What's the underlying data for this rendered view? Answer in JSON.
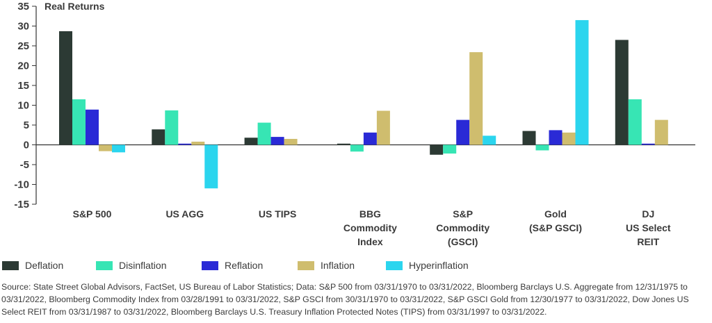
{
  "chart_data": {
    "type": "bar",
    "title": "",
    "ylabel": "Real Returns",
    "xlabel": "",
    "ylim": [
      -15,
      35
    ],
    "yticks": [
      "35",
      "30",
      "25",
      "20",
      "15",
      "10",
      "5",
      "0",
      "-5",
      "-10",
      "-15"
    ],
    "grid": false,
    "legend_position": "bottom",
    "categories": [
      [
        "S&P 500"
      ],
      [
        "US AGG"
      ],
      [
        "US TIPS"
      ],
      [
        "BBG",
        "Commodity",
        "Index"
      ],
      [
        "S&P",
        "Commodity",
        "(GSCI)"
      ],
      [
        "Gold",
        "(S&P GSCI)"
      ],
      [
        "DJ",
        "US Select",
        "REIT"
      ]
    ],
    "series": [
      {
        "name": "Deflation",
        "color": "#2c3a34",
        "values": [
          28.7,
          3.9,
          1.8,
          0.3,
          -2.5,
          3.5,
          26.5
        ]
      },
      {
        "name": "Disinflation",
        "color": "#37e5b4",
        "values": [
          11.5,
          8.7,
          5.6,
          -1.7,
          -2.2,
          -1.4,
          11.5
        ]
      },
      {
        "name": "Reflation",
        "color": "#2a2ad6",
        "values": [
          8.9,
          0.3,
          2.0,
          3.1,
          6.3,
          3.7,
          0.3
        ]
      },
      {
        "name": "Inflation",
        "color": "#cfbd6e",
        "values": [
          -1.6,
          0.8,
          1.5,
          8.6,
          23.4,
          3.1,
          6.3
        ]
      },
      {
        "name": "Hyperinflation",
        "color": "#2bd5ee",
        "values": [
          -1.9,
          -11.0,
          0,
          0,
          2.3,
          31.5,
          0
        ]
      }
    ]
  },
  "source_text": "Source: State Street Global Advisors, FactSet, US Bureau of Labor Statistics; Data: S&P 500 from 03/31/1970 to 03/31/2022,  Bloomberg Barclays U.S. Aggregate from 12/31/1975 to 03/31/2022, Bloomberg Commodity Index from 03/28/1991 to 03/31/2022, S&P GSCI from 30/31/1970 to 03/31/2022, S&P GSCI Gold from 12/30/1977 to 03/31/2022, Dow Jones US Select REIT from 03/31/1987 to 03/31/2022, Bloomberg Barclays U.S. Treasury Inflation Protected Notes (TIPS) from 03/31/1997 to 03/31/2022."
}
